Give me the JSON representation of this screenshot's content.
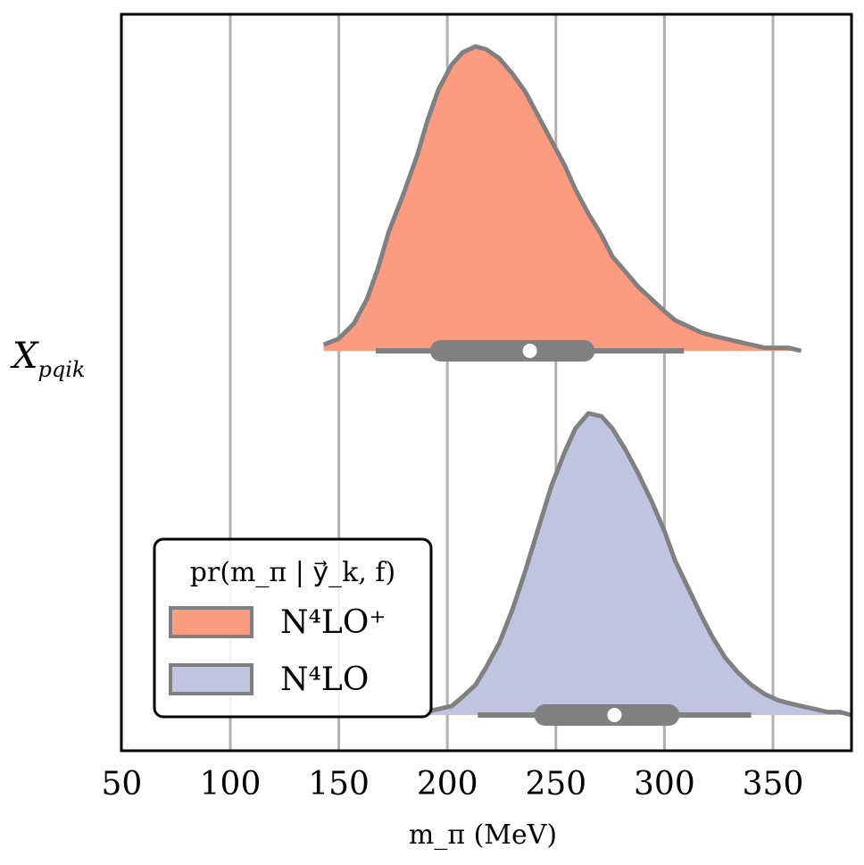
{
  "chart_data": {
    "type": "violin",
    "xlabel": "m_π (MeV)",
    "x_tick_labels": [
      "50",
      "100",
      "150",
      "200",
      "250",
      "300",
      "350"
    ],
    "x_ticks": [
      50,
      100,
      150,
      200,
      250,
      300,
      350
    ],
    "xlim": [
      50,
      386
    ],
    "grid": "vertical",
    "category_label": "X_pqik",
    "legend": {
      "title": "pr(m_π | y⃗_k, f)",
      "placement": "bottom-left",
      "entries": [
        "N⁴LO⁺",
        "N⁴LO"
      ]
    },
    "series": [
      {
        "name": "N⁴LO⁺",
        "color": "#fc9b7f",
        "edge_color": "#808080",
        "density_x": [
          143,
          150,
          157,
          163,
          168,
          173,
          180,
          186,
          191,
          196,
          202,
          207,
          213,
          218,
          224,
          230,
          236,
          242,
          248,
          254,
          259,
          265,
          271,
          276,
          282,
          288,
          294,
          300,
          305,
          311,
          317,
          322,
          328,
          334,
          340,
          346,
          352,
          357,
          363
        ],
        "density_y": [
          0.02,
          0.04,
          0.09,
          0.17,
          0.27,
          0.39,
          0.52,
          0.64,
          0.76,
          0.86,
          0.94,
          0.98,
          1.0,
          0.99,
          0.96,
          0.91,
          0.85,
          0.77,
          0.69,
          0.61,
          0.53,
          0.45,
          0.38,
          0.31,
          0.26,
          0.21,
          0.17,
          0.13,
          0.1,
          0.08,
          0.06,
          0.05,
          0.04,
          0.03,
          0.02,
          0.01,
          0.01,
          0.01,
          0.0
        ],
        "whisker": [
          167,
          309
        ],
        "iqr": [
          197,
          263
        ],
        "median": 238
      },
      {
        "name": "N⁴LO",
        "color": "#c1c3e0",
        "edge_color": "#808080",
        "density_x": [
          190,
          196,
          202,
          207,
          213,
          218,
          224,
          230,
          236,
          242,
          248,
          254,
          259,
          265,
          271,
          276,
          282,
          288,
          294,
          300,
          305,
          311,
          317,
          322,
          328,
          334,
          340,
          346,
          352,
          357,
          363,
          369,
          375,
          381,
          386
        ],
        "density_y": [
          0.01,
          0.02,
          0.03,
          0.06,
          0.1,
          0.16,
          0.24,
          0.35,
          0.48,
          0.62,
          0.76,
          0.87,
          0.95,
          1.0,
          0.99,
          0.95,
          0.88,
          0.8,
          0.71,
          0.61,
          0.51,
          0.42,
          0.33,
          0.26,
          0.19,
          0.14,
          0.1,
          0.07,
          0.05,
          0.04,
          0.03,
          0.02,
          0.01,
          0.01,
          0.0
        ],
        "whisker": [
          214,
          340
        ],
        "iqr": [
          245,
          302
        ],
        "median": 277
      }
    ]
  }
}
